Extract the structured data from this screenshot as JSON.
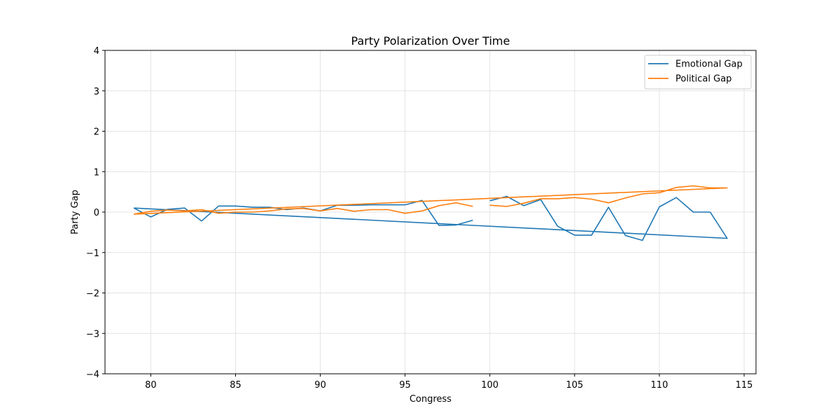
{
  "chart_data": {
    "type": "line",
    "title": "Party Polarization Over Time",
    "xlabel": "Congress",
    "ylabel": "Party Gap",
    "xlim": [
      77.3,
      115.7
    ],
    "ylim": [
      -4,
      4
    ],
    "xticks": [
      80,
      85,
      90,
      95,
      100,
      105,
      110,
      115
    ],
    "yticks": [
      -4,
      -3,
      -2,
      -1,
      0,
      1,
      2,
      3,
      4
    ],
    "ytick_labels": [
      "−4",
      "−3",
      "−2",
      "−1",
      "0",
      "1",
      "2",
      "3",
      "4"
    ],
    "grid": true,
    "legend_position": "top-right",
    "series": [
      {
        "name": "Emotional Gap",
        "color": "#1f77b4",
        "segments": [
          [
            [
              79,
              0.1
            ],
            [
              80,
              -0.12
            ],
            [
              81,
              0.07
            ],
            [
              82,
              0.1
            ],
            [
              83,
              -0.22
            ],
            [
              84,
              0.15
            ],
            [
              85,
              0.15
            ],
            [
              86,
              0.12
            ],
            [
              87,
              0.12
            ],
            [
              88,
              0.06
            ],
            [
              89,
              0.1
            ],
            [
              90,
              0.03
            ],
            [
              91,
              0.17
            ],
            [
              92,
              0.17
            ],
            [
              93,
              0.18
            ],
            [
              94,
              0.18
            ],
            [
              95,
              0.18
            ],
            [
              96,
              0.29
            ],
            [
              97,
              -0.33
            ],
            [
              98,
              -0.32
            ],
            [
              99,
              -0.2
            ]
          ],
          [
            [
              100,
              0.28
            ],
            [
              101,
              0.39
            ],
            [
              102,
              0.16
            ],
            [
              103,
              0.31
            ],
            [
              104,
              -0.35
            ],
            [
              105,
              -0.57
            ],
            [
              106,
              -0.57
            ],
            [
              107,
              0.12
            ],
            [
              108,
              -0.58
            ],
            [
              109,
              -0.7
            ],
            [
              110,
              0.13
            ],
            [
              111,
              0.36
            ],
            [
              112,
              0.0
            ],
            [
              113,
              0.0
            ],
            [
              114,
              -0.65
            ],
            [
              79,
              0.1
            ]
          ]
        ]
      },
      {
        "name": "Political Gap",
        "color": "#ff7f0e",
        "segments": [
          [
            [
              79,
              -0.05
            ],
            [
              80,
              0.02
            ],
            [
              81,
              0.05
            ],
            [
              82,
              0.03
            ],
            [
              83,
              0.06
            ],
            [
              84,
              -0.03
            ],
            [
              85,
              0.0
            ],
            [
              86,
              0.0
            ],
            [
              87,
              0.03
            ],
            [
              88,
              0.08
            ],
            [
              89,
              0.09
            ],
            [
              90,
              0.03
            ],
            [
              91,
              0.09
            ],
            [
              92,
              0.02
            ],
            [
              93,
              0.06
            ],
            [
              94,
              0.06
            ],
            [
              95,
              -0.03
            ],
            [
              96,
              0.03
            ],
            [
              97,
              0.16
            ],
            [
              98,
              0.23
            ],
            [
              99,
              0.14
            ]
          ],
          [
            [
              100,
              0.17
            ],
            [
              101,
              0.14
            ],
            [
              102,
              0.22
            ],
            [
              103,
              0.33
            ],
            [
              104,
              0.33
            ],
            [
              105,
              0.36
            ],
            [
              106,
              0.32
            ],
            [
              107,
              0.23
            ],
            [
              108,
              0.35
            ],
            [
              109,
              0.45
            ],
            [
              110,
              0.48
            ],
            [
              111,
              0.61
            ],
            [
              112,
              0.65
            ],
            [
              113,
              0.6
            ],
            [
              114,
              0.6
            ],
            [
              79,
              -0.05
            ]
          ]
        ]
      }
    ]
  }
}
